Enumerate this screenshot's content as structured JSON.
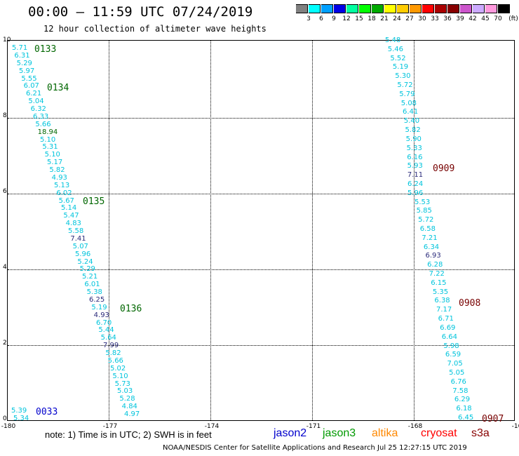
{
  "header": {
    "title": "00:00 – 11:59 UTC 07/24/2019",
    "subtitle": "12 hour collection of altimeter wave heights"
  },
  "colorbar": {
    "units": "(ft)",
    "colors": [
      "#808080",
      "#00ffff",
      "#00a0ff",
      "#0000e6",
      "#00ffa0",
      "#00ff00",
      "#00aa00",
      "#ffff00",
      "#ffcc00",
      "#ff9900",
      "#ff0000",
      "#aa0000",
      "#880000",
      "#cc55cc",
      "#ccaaff",
      "#ff99dd",
      "#000000"
    ],
    "labels": [
      "3",
      "6",
      "9",
      "12",
      "15",
      "18",
      "21",
      "24",
      "27",
      "30",
      "33",
      "36",
      "39",
      "42",
      "45",
      "70"
    ]
  },
  "map": {
    "x_ticks": [
      "-180",
      "-177",
      "-174",
      "-171",
      "-168",
      "-16"
    ],
    "y_ticks": [
      "0",
      "2",
      "4",
      "6",
      "8",
      "10"
    ],
    "passes": [
      {
        "label": "0133",
        "color": "#006600"
      },
      {
        "label": "0134",
        "color": "#006600"
      },
      {
        "label": "0135",
        "color": "#006600"
      },
      {
        "label": "0136",
        "color": "#006600"
      },
      {
        "label": "0033",
        "color": "#0000cc"
      },
      {
        "label": "0909",
        "color": "#770000"
      },
      {
        "label": "0908",
        "color": "#770000"
      },
      {
        "label": "0907",
        "color": "#770000"
      }
    ],
    "track_west": [
      "5.71",
      "6.31",
      "5.29",
      "5.97",
      "5.55",
      "6.07",
      "6.21",
      "5.04",
      "6.32",
      "6.33",
      "5.66",
      "18.94",
      "5.10",
      "5.31",
      "5.10",
      "5.17",
      "5.82",
      "4.93",
      "5.13",
      "6.02",
      "5.67",
      "5.14",
      "5.47",
      "4.83",
      "5.58",
      "7.41",
      "5.07",
      "5.96",
      "5.24",
      "5.29",
      "5.21",
      "6.01",
      "5.38",
      "6.25",
      "5.19",
      "4.93",
      "6.70",
      "5.44",
      "5.64",
      "7.99",
      "5.82",
      "5.66",
      "5.02",
      "5.10",
      "5.73",
      "5.03",
      "5.28",
      "4.84",
      "4.97"
    ],
    "track_west_extra": [
      "5.39",
      "5.34"
    ],
    "track_east": [
      "5.48",
      "5.46",
      "5.52",
      "5.19",
      "5.30",
      "5.72",
      "5.79",
      "5.08",
      "6.41",
      "5.40",
      "5.82",
      "5.90",
      "5.33",
      "6.16",
      "5.93",
      "7.11",
      "6.24",
      "5.96",
      "5.53",
      "5.85",
      "5.72",
      "6.58",
      "7.21",
      "6.34",
      "6.93",
      "6.28",
      "7.22",
      "6.15",
      "5.35",
      "6.38",
      "7.17",
      "6.71",
      "6.69",
      "6.64",
      "5.98",
      "6.59",
      "7.05",
      "5.05",
      "6.76",
      "7.58",
      "6.29",
      "6.18",
      "6.45"
    ]
  },
  "footer": {
    "note": "note:  1) Time is in UTC;  2) SWH is in feet",
    "legend": [
      {
        "label": "jason2",
        "color": "#0000cc"
      },
      {
        "label": "jason3",
        "color": "#009900"
      },
      {
        "label": "altika",
        "color": "#ff8800"
      },
      {
        "label": "cryosat",
        "color": "#ff0000"
      },
      {
        "label": "s3a",
        "color": "#880000"
      }
    ],
    "credit": "NOAA/NESDIS Center for Satellite Applications and Research     Jul 25 12:27:15 UTC 2019"
  }
}
